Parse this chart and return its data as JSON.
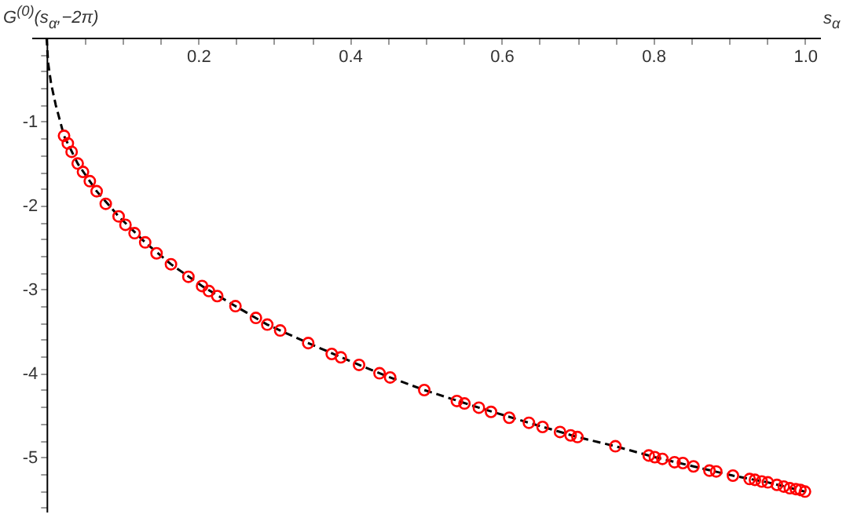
{
  "chart_data": {
    "type": "scatter",
    "xlabel": "s$_{α}$",
    "ylabel": "G$^{(0)}$(s$_{α}$,−2π)",
    "xlim": [
      -0.02,
      1.02
    ],
    "ylim": [
      -5.65,
      0
    ],
    "xticks": [
      {
        "value": 0.05,
        "label": null
      },
      {
        "value": 0.1,
        "label": null
      },
      {
        "value": 0.15,
        "label": null
      },
      {
        "value": 0.2,
        "label": "0.2"
      },
      {
        "value": 0.25,
        "label": null
      },
      {
        "value": 0.3,
        "label": null
      },
      {
        "value": 0.35,
        "label": null
      },
      {
        "value": 0.4,
        "label": "0.4"
      },
      {
        "value": 0.45,
        "label": null
      },
      {
        "value": 0.5,
        "label": null
      },
      {
        "value": 0.55,
        "label": null
      },
      {
        "value": 0.6,
        "label": "0.6"
      },
      {
        "value": 0.65,
        "label": null
      },
      {
        "value": 0.7,
        "label": null
      },
      {
        "value": 0.75,
        "label": null
      },
      {
        "value": 0.8,
        "label": "0.8"
      },
      {
        "value": 0.85,
        "label": null
      },
      {
        "value": 0.9,
        "label": null
      },
      {
        "value": 0.95,
        "label": null
      },
      {
        "value": 1.0,
        "label": "1.0"
      }
    ],
    "yticks": [
      {
        "value": -0.2,
        "label": null
      },
      {
        "value": -0.4,
        "label": null
      },
      {
        "value": -0.6,
        "label": null
      },
      {
        "value": -0.8,
        "label": null
      },
      -1,
      {
        "value": -1.2,
        "label": null
      },
      {
        "value": -1.4,
        "label": null
      },
      {
        "value": -1.6,
        "label": null
      },
      {
        "value": -1.8,
        "label": null
      },
      -2,
      {
        "value": -2.2,
        "label": null
      },
      {
        "value": -2.4,
        "label": null
      },
      {
        "value": -2.6,
        "label": null
      },
      {
        "value": -2.8,
        "label": null
      },
      -3,
      {
        "value": -3.2,
        "label": null
      },
      {
        "value": -3.4,
        "label": null
      },
      {
        "value": -3.6,
        "label": null
      },
      {
        "value": -3.8,
        "label": null
      },
      -4,
      {
        "value": -4.2,
        "label": null
      },
      {
        "value": -4.4,
        "label": null
      },
      {
        "value": -4.6,
        "label": null
      },
      {
        "value": -4.8,
        "label": null
      },
      -5,
      {
        "value": -5.2,
        "label": null
      },
      {
        "value": -5.4,
        "label": null
      },
      {
        "value": -5.6,
        "label": null
      }
    ],
    "grid": false,
    "series": [
      {
        "type": "line",
        "color": "#000000",
        "line_style": "dashed",
        "marker": "none",
        "x": [
          0,
          0.002,
          0.006,
          0.012,
          0.023,
          0.041,
          0.066,
          0.095,
          0.13,
          0.164,
          0.205,
          0.249,
          0.291,
          0.345,
          0.412,
          0.453,
          0.498,
          0.57,
          0.636,
          0.7,
          0.75,
          0.802,
          0.853,
          0.905,
          0.951,
          1.0
        ],
        "values": [
          0,
          -0.3,
          -0.55,
          -0.8,
          -1.17,
          -1.5,
          -1.83,
          -2.13,
          -2.44,
          -2.7,
          -2.96,
          -3.2,
          -3.42,
          -3.64,
          -3.9,
          -4.05,
          -4.2,
          -4.41,
          -4.59,
          -4.76,
          -4.87,
          -5.0,
          -5.11,
          -5.22,
          -5.3,
          -5.41
        ]
      },
      {
        "color": "#ff0000",
        "marker": "circle",
        "x": [
          0.023,
          0.028,
          0.033,
          0.041,
          0.048,
          0.057,
          0.066,
          0.078,
          0.095,
          0.104,
          0.116,
          0.13,
          0.145,
          0.164,
          0.187,
          0.205,
          0.214,
          0.225,
          0.249,
          0.276,
          0.291,
          0.308,
          0.345,
          0.376,
          0.388,
          0.412,
          0.439,
          0.453,
          0.498,
          0.541,
          0.551,
          0.57,
          0.586,
          0.61,
          0.636,
          0.654,
          0.677,
          0.691,
          0.7,
          0.75,
          0.794,
          0.802,
          0.812,
          0.828,
          0.839,
          0.853,
          0.874,
          0.883,
          0.905,
          0.927,
          0.934,
          0.943,
          0.951,
          0.963,
          0.972,
          0.98,
          0.988,
          0.994,
          1.0
        ],
        "values": [
          -1.17,
          -1.26,
          -1.36,
          -1.5,
          -1.6,
          -1.71,
          -1.83,
          -1.98,
          -2.13,
          -2.23,
          -2.33,
          -2.44,
          -2.57,
          -2.7,
          -2.85,
          -2.96,
          -3.02,
          -3.08,
          -3.2,
          -3.34,
          -3.42,
          -3.49,
          -3.64,
          -3.77,
          -3.81,
          -3.9,
          -4.0,
          -4.05,
          -4.2,
          -4.33,
          -4.36,
          -4.41,
          -4.46,
          -4.53,
          -4.59,
          -4.64,
          -4.7,
          -4.74,
          -4.76,
          -4.87,
          -4.98,
          -5.0,
          -5.02,
          -5.06,
          -5.07,
          -5.11,
          -5.16,
          -5.17,
          -5.22,
          -5.26,
          -5.27,
          -5.29,
          -5.3,
          -5.33,
          -5.35,
          -5.37,
          -5.38,
          -5.39,
          -5.41
        ]
      }
    ]
  }
}
